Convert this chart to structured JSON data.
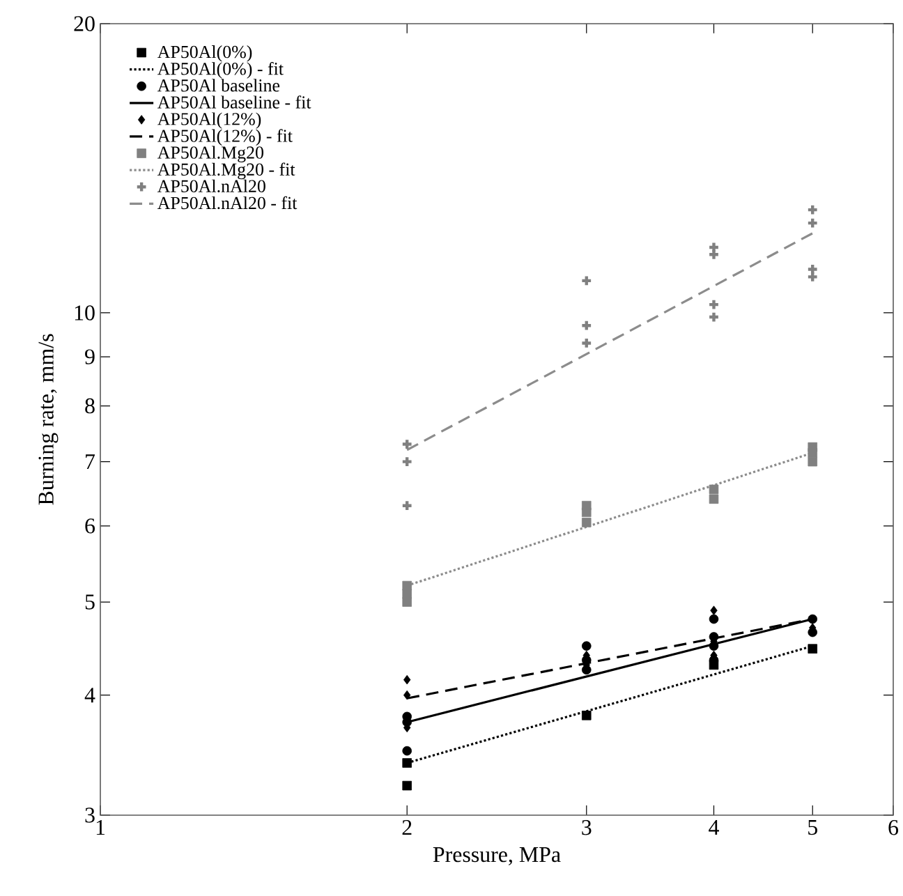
{
  "chart_data": {
    "type": "scatter",
    "xlabel": "Pressure, MPa",
    "ylabel": "Burning rate, mm/s",
    "log": "xy",
    "xlim": [
      1,
      6
    ],
    "ylim": [
      3,
      20
    ],
    "xticks": [
      1,
      2,
      3,
      4,
      5,
      6
    ],
    "yticks": [
      3,
      4,
      5,
      6,
      7,
      8,
      9,
      10,
      20
    ],
    "grid": false,
    "legend": "top left",
    "series": [
      {
        "name": "AP50Al(0%)",
        "marker": "square",
        "color": "#000000",
        "x": [
          2,
          2,
          3,
          4,
          5
        ],
        "values": [
          3.22,
          3.4,
          3.81,
          4.3,
          4.47
        ]
      },
      {
        "name": "AP50Al(0%) - fit",
        "type": "line",
        "marker": "none",
        "line_style": "dotted",
        "color": "#000000",
        "x": [
          2,
          5
        ],
        "values": [
          3.4,
          4.5
        ]
      },
      {
        "name": "AP50Al baseline",
        "marker": "circle",
        "color": "#000000",
        "x": [
          2,
          2,
          2,
          3,
          3,
          3,
          4,
          4,
          4,
          4,
          5,
          5
        ],
        "values": [
          3.5,
          3.75,
          3.8,
          4.25,
          4.35,
          4.5,
          4.35,
          4.5,
          4.6,
          4.8,
          4.65,
          4.8
        ]
      },
      {
        "name": "AP50Al baseline - fit",
        "type": "line",
        "marker": "none",
        "line_style": "solid",
        "color": "#000000",
        "x": [
          2,
          5
        ],
        "values": [
          3.75,
          4.8
        ]
      },
      {
        "name": "AP50Al(12%)",
        "marker": "diamond",
        "color": "#000000",
        "x": [
          2,
          2,
          2,
          3,
          3,
          4,
          4,
          4,
          5
        ],
        "values": [
          4.15,
          4.0,
          3.7,
          4.3,
          4.4,
          4.9,
          4.55,
          4.4,
          4.7
        ]
      },
      {
        "name": "AP50Al(12%) - fit",
        "type": "line",
        "marker": "none",
        "line_style": "dashed",
        "color": "#000000",
        "x": [
          2,
          5
        ],
        "values": [
          3.97,
          4.8
        ]
      },
      {
        "name": "AP50Al.Mg20",
        "marker": "square",
        "color": "#808080",
        "x": [
          2,
          2,
          2,
          3,
          3,
          3,
          4,
          4,
          5,
          5,
          5
        ],
        "values": [
          5.0,
          5.1,
          5.2,
          6.05,
          6.2,
          6.3,
          6.4,
          6.55,
          7.0,
          7.15,
          7.25
        ]
      },
      {
        "name": "AP50Al.Mg20 - fit",
        "type": "line",
        "marker": "none",
        "line_style": "dotted",
        "color": "#8c8c8c",
        "x": [
          2,
          5
        ],
        "values": [
          5.2,
          7.15
        ]
      },
      {
        "name": "AP50Al.nAl20",
        "marker": "cross",
        "color": "#808080",
        "x": [
          2,
          2,
          2,
          3,
          3,
          3,
          4,
          4,
          4,
          4,
          5,
          5,
          5,
          5
        ],
        "values": [
          6.3,
          7.0,
          7.3,
          9.3,
          9.7,
          10.8,
          9.9,
          10.2,
          11.5,
          11.7,
          10.9,
          11.1,
          12.4,
          12.8
        ]
      },
      {
        "name": "AP50Al.nAl20 - fit",
        "type": "line",
        "marker": "none",
        "line_style": "dashed",
        "color": "#8c8c8c",
        "x": [
          2,
          5
        ],
        "values": [
          7.2,
          12.1
        ]
      }
    ]
  }
}
